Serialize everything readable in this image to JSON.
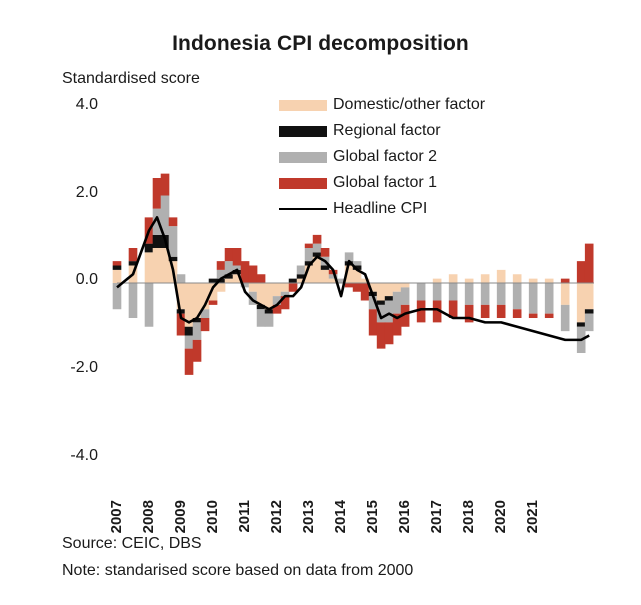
{
  "title": "Indonesia CPI decomposition",
  "source": "Source: CEIC, DBS",
  "note": "Note: standarised score based on data from 2000",
  "colors": {
    "domestic": "#f7d2b0",
    "regional": "#111111",
    "global2": "#b0b0b0",
    "global1": "#c0392b",
    "headline": "#000000"
  },
  "chart_data": {
    "type": "bar",
    "title": "Indonesia CPI decomposition",
    "ylabel": "Standardised score",
    "xlabel": "",
    "ylim": [
      -4.0,
      4.0
    ],
    "yticks": [
      "4.0",
      "2.0",
      "0.0",
      "-2.0",
      "-4.0"
    ],
    "ytick_values": [
      4,
      2,
      0,
      -2,
      -4
    ],
    "xlim": [
      2007,
      2021.9
    ],
    "xticks": [
      "2007",
      "2008",
      "2009",
      "2010",
      "2011",
      "2012",
      "2013",
      "2014",
      "2015",
      "2016",
      "2017",
      "2018",
      "2020",
      "2021"
    ],
    "xtick_values": [
      2007,
      2008,
      2009,
      2010,
      2011,
      2012,
      2013,
      2014,
      2015,
      2016,
      2017,
      2018,
      2019,
      2020
    ],
    "legend": {
      "position": "top-right",
      "items": [
        {
          "label": "Domestic/other factor",
          "key": "domestic",
          "kind": "bar"
        },
        {
          "label": "Regional factor",
          "key": "regional",
          "kind": "bar"
        },
        {
          "label": "Global factor 2",
          "key": "global2",
          "kind": "bar"
        },
        {
          "label": "Global factor 1",
          "key": "global1",
          "kind": "bar"
        },
        {
          "label": "Headline CPI",
          "key": "headline",
          "kind": "line"
        }
      ]
    },
    "x": [
      2007.0,
      2007.5,
      2008.0,
      2008.25,
      2008.5,
      2008.75,
      2009.0,
      2009.25,
      2009.5,
      2009.75,
      2010.0,
      2010.25,
      2010.5,
      2010.75,
      2011.0,
      2011.25,
      2011.5,
      2011.75,
      2012.0,
      2012.25,
      2012.5,
      2012.75,
      2013.0,
      2013.25,
      2013.5,
      2013.75,
      2014.0,
      2014.25,
      2014.5,
      2014.75,
      2015.0,
      2015.25,
      2015.5,
      2015.75,
      2016.0,
      2016.5,
      2017.0,
      2017.5,
      2018.0,
      2018.5,
      2019.0,
      2019.5,
      2020.0,
      2020.5,
      2021.0,
      2021.5,
      2021.75
    ],
    "series": [
      {
        "name": "Domestic/other factor",
        "values": [
          0.3,
          0.4,
          0.7,
          0.8,
          0.8,
          0.5,
          -0.6,
          -1.0,
          -0.8,
          -0.6,
          -0.4,
          -0.2,
          0.1,
          0.2,
          0.0,
          -0.2,
          -0.5,
          -0.6,
          -0.3,
          -0.2,
          0.0,
          0.1,
          0.4,
          0.6,
          0.3,
          0.1,
          0.0,
          0.4,
          0.3,
          0.1,
          -0.2,
          -0.4,
          -0.3,
          -0.2,
          -0.1,
          0.0,
          0.1,
          0.2,
          0.1,
          0.2,
          0.3,
          0.2,
          0.1,
          0.1,
          -0.5,
          -0.9,
          -0.6
        ]
      },
      {
        "name": "Regional factor",
        "values": [
          0.1,
          0.1,
          0.2,
          0.3,
          0.3,
          0.1,
          -0.1,
          -0.2,
          -0.1,
          0.0,
          0.1,
          0.1,
          0.1,
          0.1,
          0.0,
          0.0,
          -0.1,
          -0.1,
          0.0,
          0.0,
          0.1,
          0.1,
          0.1,
          0.1,
          0.1,
          0.0,
          0.0,
          0.1,
          0.1,
          0.0,
          -0.1,
          -0.1,
          -0.1,
          0.0,
          0.0,
          0.0,
          0.0,
          0.0,
          0.0,
          0.0,
          0.0,
          0.0,
          0.0,
          0.0,
          0.0,
          -0.1,
          -0.1
        ]
      },
      {
        "name": "Global factor 2",
        "values": [
          -0.6,
          -0.8,
          -1.0,
          0.6,
          0.9,
          0.7,
          0.2,
          -0.3,
          -0.4,
          -0.2,
          0.0,
          0.2,
          0.3,
          0.1,
          -0.1,
          -0.3,
          -0.4,
          -0.3,
          -0.2,
          -0.1,
          0.0,
          0.2,
          0.3,
          0.2,
          0.2,
          0.1,
          0.1,
          0.2,
          0.1,
          0.0,
          -0.3,
          -0.4,
          -0.5,
          -0.5,
          -0.4,
          -0.4,
          -0.4,
          -0.4,
          -0.5,
          -0.5,
          -0.5,
          -0.6,
          -0.7,
          -0.7,
          -0.6,
          -0.6,
          -0.4
        ]
      },
      {
        "name": "Global factor 1",
        "values": [
          0.1,
          0.3,
          0.6,
          0.7,
          0.5,
          0.2,
          -0.5,
          -0.6,
          -0.5,
          -0.3,
          -0.1,
          0.2,
          0.3,
          0.4,
          0.5,
          0.4,
          0.2,
          0.0,
          -0.2,
          -0.3,
          -0.2,
          0.0,
          0.1,
          0.2,
          0.2,
          0.1,
          0.0,
          -0.1,
          -0.2,
          -0.4,
          -0.6,
          -0.6,
          -0.5,
          -0.5,
          -0.5,
          -0.5,
          -0.5,
          -0.4,
          -0.4,
          -0.3,
          -0.3,
          -0.2,
          -0.1,
          -0.1,
          0.1,
          0.5,
          0.9
        ]
      },
      {
        "name": "Headline CPI",
        "values": [
          -0.1,
          0.2,
          1.2,
          1.5,
          1.0,
          0.3,
          -0.8,
          -0.9,
          -0.8,
          -0.5,
          -0.1,
          0.1,
          0.2,
          0.3,
          -0.2,
          -0.4,
          -0.5,
          -0.6,
          -0.5,
          -0.3,
          -0.3,
          -0.1,
          0.4,
          0.6,
          0.5,
          0.3,
          -0.3,
          0.5,
          0.3,
          0.2,
          -0.3,
          -0.8,
          -0.7,
          -0.8,
          -0.7,
          -0.6,
          -0.6,
          -0.8,
          -0.8,
          -0.9,
          -0.9,
          -1.0,
          -1.1,
          -1.2,
          -1.3,
          -1.3,
          -1.2
        ]
      }
    ]
  }
}
